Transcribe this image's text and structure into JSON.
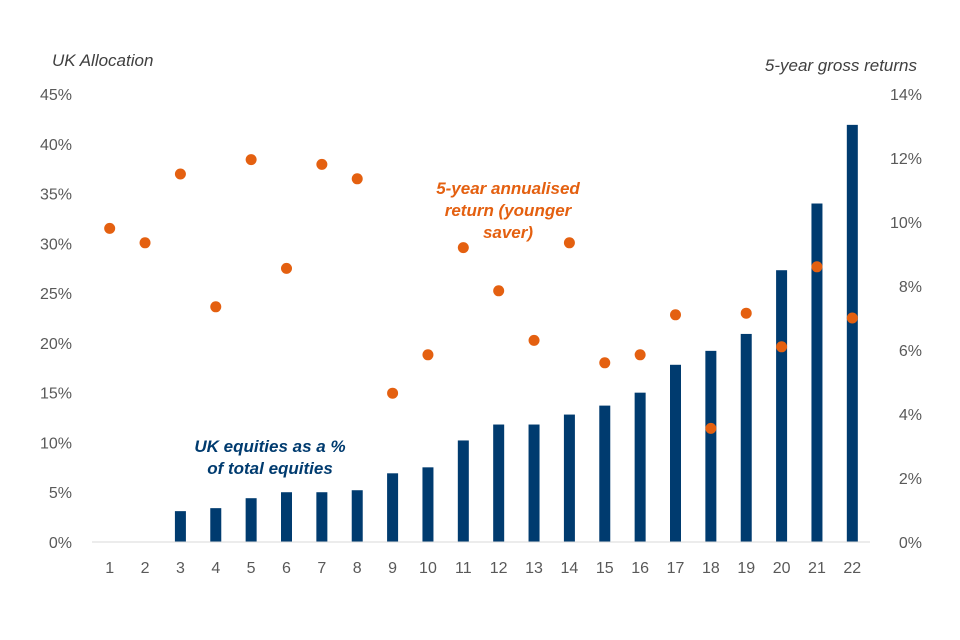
{
  "chart_data": {
    "type": "bar+scatter",
    "categories": [
      "1",
      "2",
      "3",
      "4",
      "5",
      "6",
      "7",
      "8",
      "9",
      "10",
      "11",
      "12",
      "13",
      "14",
      "15",
      "16",
      "17",
      "18",
      "19",
      "20",
      "21",
      "22"
    ],
    "series": [
      {
        "name": "UK equities as a % of total equities",
        "type": "bar",
        "axis": "left",
        "color": "#003b6f",
        "values": [
          0,
          0,
          3.1,
          3.4,
          4.4,
          5.0,
          5.0,
          5.2,
          6.9,
          7.5,
          10.2,
          11.8,
          11.8,
          12.8,
          13.7,
          15.0,
          17.8,
          19.2,
          20.9,
          27.3,
          34.0,
          41.9
        ]
      },
      {
        "name": "5-year annualised return (younger saver)",
        "type": "scatter",
        "axis": "right",
        "color": "#e46010",
        "values": [
          9.8,
          9.35,
          11.5,
          7.35,
          11.95,
          8.55,
          11.8,
          11.35,
          4.65,
          5.85,
          9.2,
          7.85,
          6.3,
          9.35,
          5.6,
          5.85,
          7.1,
          3.55,
          7.15,
          6.1,
          8.6,
          7.0
        ]
      }
    ],
    "left_axis": {
      "title": "UK Allocation",
      "ylim": [
        0,
        45
      ],
      "ticks": [
        0,
        5,
        10,
        15,
        20,
        25,
        30,
        35,
        40,
        45
      ],
      "tick_labels": [
        "0%",
        "5%",
        "10%",
        "15%",
        "20%",
        "25%",
        "30%",
        "35%",
        "40%",
        "45%"
      ]
    },
    "right_axis": {
      "title": "5-year gross returns",
      "ylim": [
        0,
        14
      ],
      "ticks": [
        0,
        2,
        4,
        6,
        8,
        10,
        12,
        14
      ],
      "tick_labels": [
        "0%",
        "2%",
        "4%",
        "6%",
        "8%",
        "10%",
        "12%",
        "14%"
      ]
    },
    "annotations": {
      "returns_label": [
        "5-year annualised",
        "return (younger",
        "saver)"
      ],
      "equities_label": [
        "UK equities as a %",
        "of total equities"
      ]
    },
    "grid": false,
    "legend": "none"
  }
}
